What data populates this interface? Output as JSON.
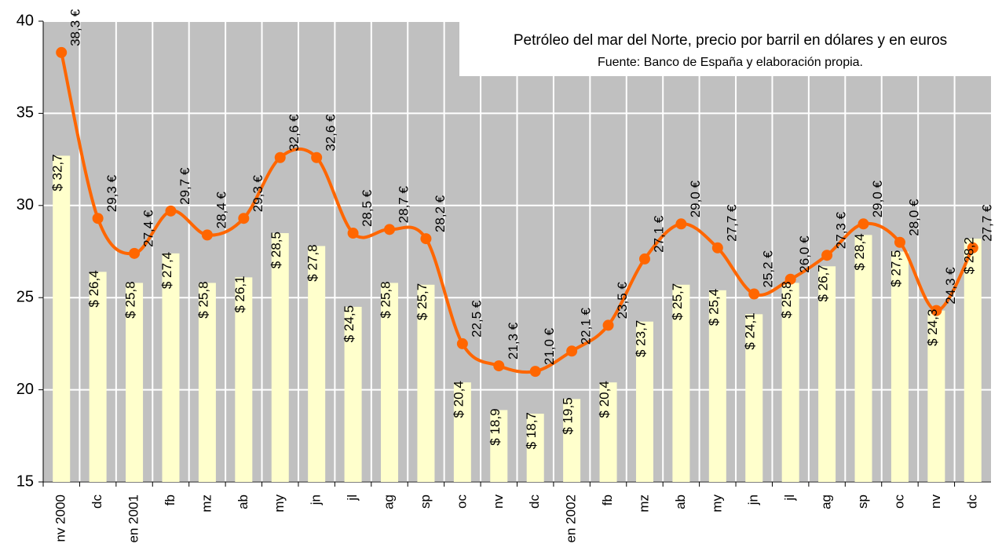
{
  "chart_data": {
    "type": "bar_line",
    "title": "Petróleo del mar del Norte, precio por barril en dólares y en euros",
    "subtitle": "Fuente: Banco de España y elaboración propia.",
    "categories": [
      "nv 2000",
      "dc",
      "en 2001",
      "fb",
      "mz",
      "ab",
      "my",
      "jn",
      "jl",
      "ag",
      "sp",
      "oc",
      "nv",
      "dc",
      "en 2002",
      "fb",
      "mz",
      "ab",
      "my",
      "jn",
      "jl",
      "ag",
      "sp",
      "oc",
      "nv",
      "dc"
    ],
    "series": [
      {
        "type": "bar",
        "color": "#ffffcc",
        "values": [
          32.7,
          26.4,
          25.8,
          27.4,
          25.8,
          26.1,
          28.5,
          27.8,
          24.5,
          25.8,
          25.7,
          20.4,
          18.9,
          18.7,
          19.5,
          20.4,
          23.7,
          25.7,
          25.4,
          24.1,
          25.8,
          26.7,
          28.4,
          27.5,
          24.3,
          28.2
        ],
        "value_labels": [
          "$ 32,7",
          "$ 26,4",
          "$ 25,8",
          "$ 27,4",
          "$ 25,8",
          "$ 26,1",
          "$ 28,5",
          "$ 27,8",
          "$ 24,5",
          "$ 25,8",
          "$ 25,7",
          "$ 20,4",
          "$ 18,9",
          "$ 18,7",
          "$ 19,5",
          "$ 20,4",
          "$ 23,7",
          "$ 25,7",
          "$ 25,4",
          "$ 24,1",
          "$ 25,8",
          "$ 26,7",
          "$ 28,4",
          "$ 27,5",
          "$ 24,3",
          "$ 28,2"
        ]
      },
      {
        "type": "line",
        "color": "#ff6600",
        "values": [
          38.3,
          29.3,
          27.4,
          29.7,
          28.4,
          29.3,
          32.6,
          32.6,
          28.5,
          28.7,
          28.2,
          22.5,
          21.3,
          21.0,
          22.1,
          23.5,
          27.1,
          29.0,
          27.7,
          25.2,
          26.0,
          27.3,
          29.0,
          28.0,
          24.3,
          27.7
        ],
        "value_labels": [
          "38,3 €",
          "29,3 €",
          "27,4 €",
          "29,7 €",
          "28,4 €",
          "29,3 €",
          "32,6 €",
          "32,6 €",
          "28,5 €",
          "28,7 €",
          "28,2 €",
          "22,5 €",
          "21,3 €",
          "21,0 €",
          "22,1 €",
          "23,5 €",
          "27,1 €",
          "29,0 €",
          "27,7 €",
          "25,2 €",
          "26,0 €",
          "27,3 €",
          "29,0 €",
          "28,0 €",
          "24,3 €",
          "27,7 €"
        ]
      }
    ],
    "ylim": [
      15,
      40
    ],
    "yticks": [
      15,
      20,
      25,
      30,
      35,
      40
    ],
    "grid": true,
    "plot_background": "#c0c0c0"
  }
}
